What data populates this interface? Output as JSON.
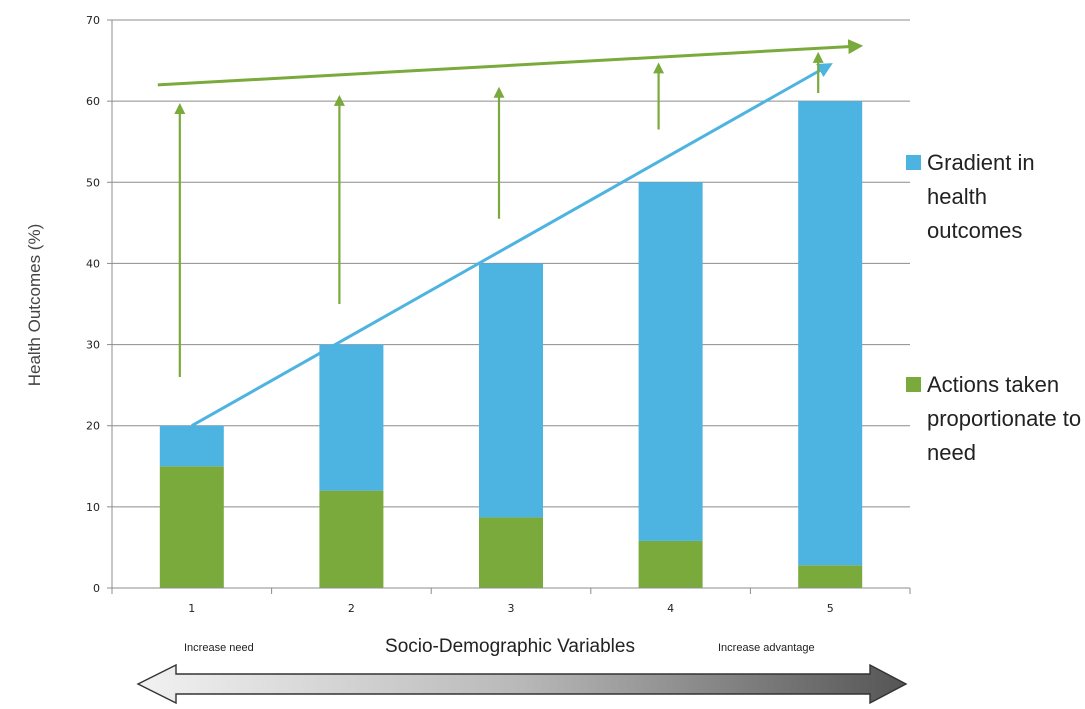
{
  "chart_data": {
    "type": "bar",
    "stacked": true,
    "categories": [
      "1",
      "2",
      "3",
      "4",
      "5"
    ],
    "series": [
      {
        "name": "Actions taken proportionate to need",
        "values": [
          15,
          12,
          8.7,
          5.8,
          2.8
        ],
        "color": "#7aaa3c"
      },
      {
        "name": "Gradient in health outcomes",
        "values": [
          5,
          18,
          31.3,
          44.2,
          57.2
        ],
        "color": "#4db3e0"
      }
    ],
    "totals": [
      20,
      30,
      40,
      50,
      60
    ],
    "yticks": [
      "0",
      "10",
      "20",
      "30",
      "40",
      "50",
      "60",
      "70"
    ],
    "ylim": [
      0,
      70
    ],
    "ylabel": "Health Outcomes (%)",
    "xlabel": "Socio-Demographic Variables",
    "grid": true,
    "legend_position": "right",
    "annotations": {
      "left_note": "Increase need",
      "right_note": "Increase advantage",
      "gradient_line": {
        "from": [
          1,
          20
        ],
        "to": [
          5,
          64.5
        ],
        "color": "#4db3e0"
      },
      "action_line": {
        "from": [
          1,
          62
        ],
        "to": [
          5.2,
          66.8
        ],
        "color": "#7aaa3c"
      },
      "upward_arrows": [
        [
          1,
          26,
          59.5
        ],
        [
          2,
          35,
          60.5
        ],
        [
          3,
          45.5,
          61.5
        ],
        [
          4,
          56.5,
          64.5
        ],
        [
          5,
          61,
          65.8
        ]
      ]
    }
  }
}
